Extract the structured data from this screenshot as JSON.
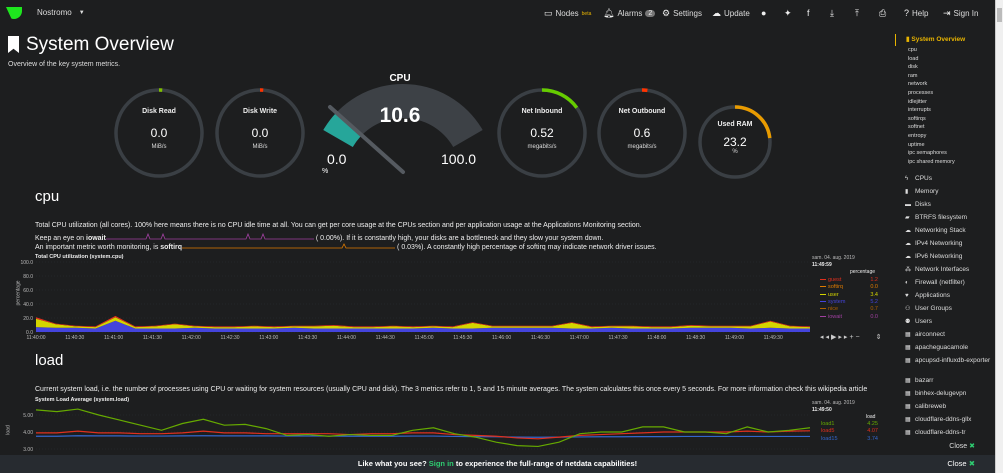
{
  "topbar": {
    "host": "Nostromo",
    "nodes": "Nodes",
    "nodes_badge": "beta",
    "alarms": "Alarms",
    "alarms_count": "2",
    "settings": "Settings",
    "update": "Update",
    "help": "Help",
    "signin": "Sign In"
  },
  "header": {
    "title": "System Overview",
    "subtitle": "Overview of the key system metrics."
  },
  "gauges": [
    {
      "label": "Disk Read",
      "value": "0.0",
      "unit": "MiB/s",
      "fraction": 0.0,
      "color": "#7fbf00"
    },
    {
      "label": "Disk Write",
      "value": "0.0",
      "unit": "MiB/s",
      "fraction": 0.0,
      "color": "#ff3300"
    },
    {
      "label": "Net Inbound",
      "value": "0.52",
      "unit": "megabits/s",
      "fraction": 0.15,
      "color": "#66cc00"
    },
    {
      "label": "Net Outbound",
      "value": "0.6",
      "unit": "megabits/s",
      "fraction": 0.02,
      "color": "#ff3300"
    },
    {
      "label": "Used RAM",
      "value": "23.2",
      "unit": "%",
      "fraction": 0.232,
      "color": "#e89b00"
    }
  ],
  "cpu_gauge": {
    "title": "CPU",
    "value": "10.6",
    "min": "0.0",
    "max": "100.0",
    "unit": "%",
    "fraction": 0.106,
    "color": "#26a69a"
  },
  "cpu_section": {
    "heading": "cpu",
    "desc1": "Total CPU utilization (all cores). 100% here means there is no CPU idle time at all. You can get per core usage at the CPUs section and per application usage at the Applications Monitoring section.",
    "desc2_pre": "Keep an eye on ",
    "desc2_bold": "iowait",
    "desc2_val": "(      0.00%). If it is constantly high, your disks are a bottleneck and they slow your system down.",
    "desc3_pre": "An important metric worth monitoring, is ",
    "desc3_bold": "softirq",
    "desc3_val": "(      0.03%). A constantly high percentage of softirq may indicate network driver issues."
  },
  "load_section": {
    "heading": "load",
    "desc": "Current system load, i.e. the number of processes using CPU or waiting for system resources (usually CPU and disk). The 3 metrics refer to 1, 5 and 15 minute averages. The system calculates this once every 5 seconds. For more information check this wikipedia article"
  },
  "chart_data": [
    {
      "type": "area",
      "title": "Total CPU utilization (system.cpu)",
      "ylabel": "percentage",
      "ylim": [
        0,
        100
      ],
      "yticks": [
        "100.0",
        "80.0",
        "60.0",
        "40.0",
        "20.0",
        "0.0"
      ],
      "xticks": [
        "11:40:00",
        "11:40:30",
        "11:41:00",
        "11:41:30",
        "11:42:00",
        "11:42:30",
        "11:43:00",
        "11:43:30",
        "11:44:00",
        "11:44:30",
        "11:45:00",
        "11:45:30",
        "11:46:00",
        "11:46:30",
        "11:47:00",
        "11:47:30",
        "11:48:00",
        "11:48:30",
        "11:49:00",
        "11:49:30"
      ],
      "date": "sam. 04. aug. 2019",
      "time": "11:49:59",
      "legend_title": "percentage",
      "series": [
        {
          "name": "guest",
          "value": "1.2",
          "color": "#e0301e"
        },
        {
          "name": "softirq",
          "value": "0.0",
          "color": "#e07b00"
        },
        {
          "name": "user",
          "value": "3.4",
          "color": "#d4d400"
        },
        {
          "name": "system",
          "value": "5.2",
          "color": "#4444dd"
        },
        {
          "name": "nice",
          "value": "0.7",
          "color": "#b06000"
        },
        {
          "name": "iowait",
          "value": "0.0",
          "color": "#a040a0"
        }
      ],
      "stack_system": [
        7,
        6,
        6,
        5,
        16,
        5,
        5,
        5,
        6,
        5,
        5,
        5,
        5,
        6,
        5,
        5,
        5,
        5,
        5,
        5,
        6,
        5,
        5,
        6,
        6,
        6,
        6,
        5,
        5,
        6,
        5,
        5,
        5,
        6,
        6,
        6,
        5,
        6,
        5,
        5
      ],
      "stack_user": [
        12,
        5,
        2,
        2,
        5,
        2,
        3,
        6,
        2,
        2,
        2,
        3,
        2,
        2,
        3,
        4,
        2,
        2,
        3,
        2,
        2,
        2,
        8,
        2,
        2,
        2,
        2,
        8,
        2,
        2,
        3,
        2,
        2,
        3,
        2,
        2,
        3,
        9,
        3,
        2
      ],
      "stack_guest": [
        2,
        1,
        1,
        1,
        2,
        1,
        1,
        1,
        1,
        1,
        1,
        1,
        1,
        1,
        1,
        1,
        1,
        1,
        1,
        1,
        1,
        1,
        1,
        1,
        1,
        1,
        1,
        1,
        1,
        1,
        1,
        1,
        1,
        1,
        1,
        1,
        1,
        1,
        1,
        1
      ]
    },
    {
      "type": "line",
      "title": "System Load Average (system.load)",
      "ylabel": "load",
      "yticks": [
        "5.00",
        "4.00",
        "3.00"
      ],
      "date": "sam. 04. aug. 2019",
      "time": "11:49:50",
      "legend_title": "load",
      "series": [
        {
          "name": "load1",
          "value": "4.25",
          "color": "#66aa00",
          "values": [
            5.3,
            5.2,
            5.35,
            5.0,
            4.7,
            4.4,
            4.1,
            4.5,
            4.75,
            4.4,
            4.45,
            4.2,
            3.8,
            3.85,
            3.75,
            3.85,
            3.8,
            3.8,
            4.1,
            4.25,
            3.9,
            3.7,
            3.4,
            3.2,
            3.15,
            3.4,
            3.9,
            4.0,
            4.0,
            4.3,
            4.3,
            4.0,
            4.0,
            3.9,
            4.3,
            4.0,
            4.1,
            4.25
          ]
        },
        {
          "name": "load5",
          "value": "4.07",
          "color": "#e0301e",
          "values": [
            3.95,
            3.95,
            4.05,
            3.95,
            3.95,
            3.9,
            3.9,
            3.95,
            4.05,
            3.95,
            3.95,
            3.9,
            3.9,
            3.9,
            3.9,
            3.85,
            3.9,
            3.9,
            3.95,
            3.95,
            3.85,
            3.8,
            3.75,
            3.65,
            3.6,
            3.7,
            3.8,
            3.85,
            3.9,
            3.95,
            4.0,
            4.0,
            4.0,
            4.0,
            4.05,
            4.0,
            4.05,
            4.07
          ]
        },
        {
          "name": "load15",
          "value": "3.74",
          "color": "#3366cc",
          "values": [
            3.75,
            3.75,
            3.78,
            3.77,
            3.77,
            3.76,
            3.76,
            3.77,
            3.78,
            3.77,
            3.77,
            3.77,
            3.76,
            3.76,
            3.76,
            3.75,
            3.75,
            3.75,
            3.76,
            3.76,
            3.74,
            3.73,
            3.72,
            3.7,
            3.69,
            3.7,
            3.71,
            3.72,
            3.72,
            3.73,
            3.73,
            3.74,
            3.74,
            3.74,
            3.74,
            3.74,
            3.74,
            3.74
          ]
        }
      ]
    }
  ],
  "sidebar": {
    "title": "System Overview",
    "sub": [
      "cpu",
      "load",
      "disk",
      "ram",
      "network",
      "processes",
      "idlejitter",
      "interrupts",
      "softirqs",
      "softnet",
      "entropy",
      "uptime",
      "ipc semaphores",
      "ipc shared memory"
    ],
    "items": [
      {
        "icon": "bolt-icon",
        "g": "ϟ",
        "label": "CPUs"
      },
      {
        "icon": "memory-icon",
        "g": "▮",
        "label": "Memory"
      },
      {
        "icon": "hdd-icon",
        "g": "▬",
        "label": "Disks"
      },
      {
        "icon": "folder-icon",
        "g": "▰",
        "label": "BTRFS filesystem"
      },
      {
        "icon": "cloud-icon",
        "g": "☁",
        "label": "Networking Stack"
      },
      {
        "icon": "cloud-icon",
        "g": "☁",
        "label": "IPv4 Networking"
      },
      {
        "icon": "cloud-icon",
        "g": "☁",
        "label": "IPv6 Networking"
      },
      {
        "icon": "sitemap-icon",
        "g": "⁂",
        "label": "Network Interfaces"
      },
      {
        "icon": "shield-icon",
        "g": "◐",
        "label": "Firewall (netfilter)"
      },
      {
        "icon": "heartbeat-icon",
        "g": "♥",
        "label": "Applications"
      },
      {
        "icon": "users-icon",
        "g": "⚇",
        "label": "User Groups"
      },
      {
        "icon": "user-icon",
        "g": "⚉",
        "label": "Users"
      },
      {
        "icon": "grid-icon",
        "g": "▦",
        "label": "airconnect"
      },
      {
        "icon": "grid-icon",
        "g": "▦",
        "label": "apacheguacamole"
      },
      {
        "icon": "grid-icon",
        "g": "▦",
        "label": "apcupsd-influxdb-exporter"
      },
      {
        "icon": "grid-icon",
        "g": "▦",
        "label": "bazarr"
      },
      {
        "icon": "grid-icon",
        "g": "▦",
        "label": "binhex-delugevpn"
      },
      {
        "icon": "grid-icon",
        "g": "▦",
        "label": "calibreweb"
      },
      {
        "icon": "grid-icon",
        "g": "▦",
        "label": "cloudflare-ddns-gllx"
      },
      {
        "icon": "grid-icon",
        "g": "▦",
        "label": "cloudflare-ddns-tr"
      }
    ],
    "close": "Close"
  },
  "banner": {
    "pre": "Like what you see? ",
    "link": "Sign in",
    "post": " to experience the full-range of netdata capabilities!",
    "close": "Close"
  }
}
